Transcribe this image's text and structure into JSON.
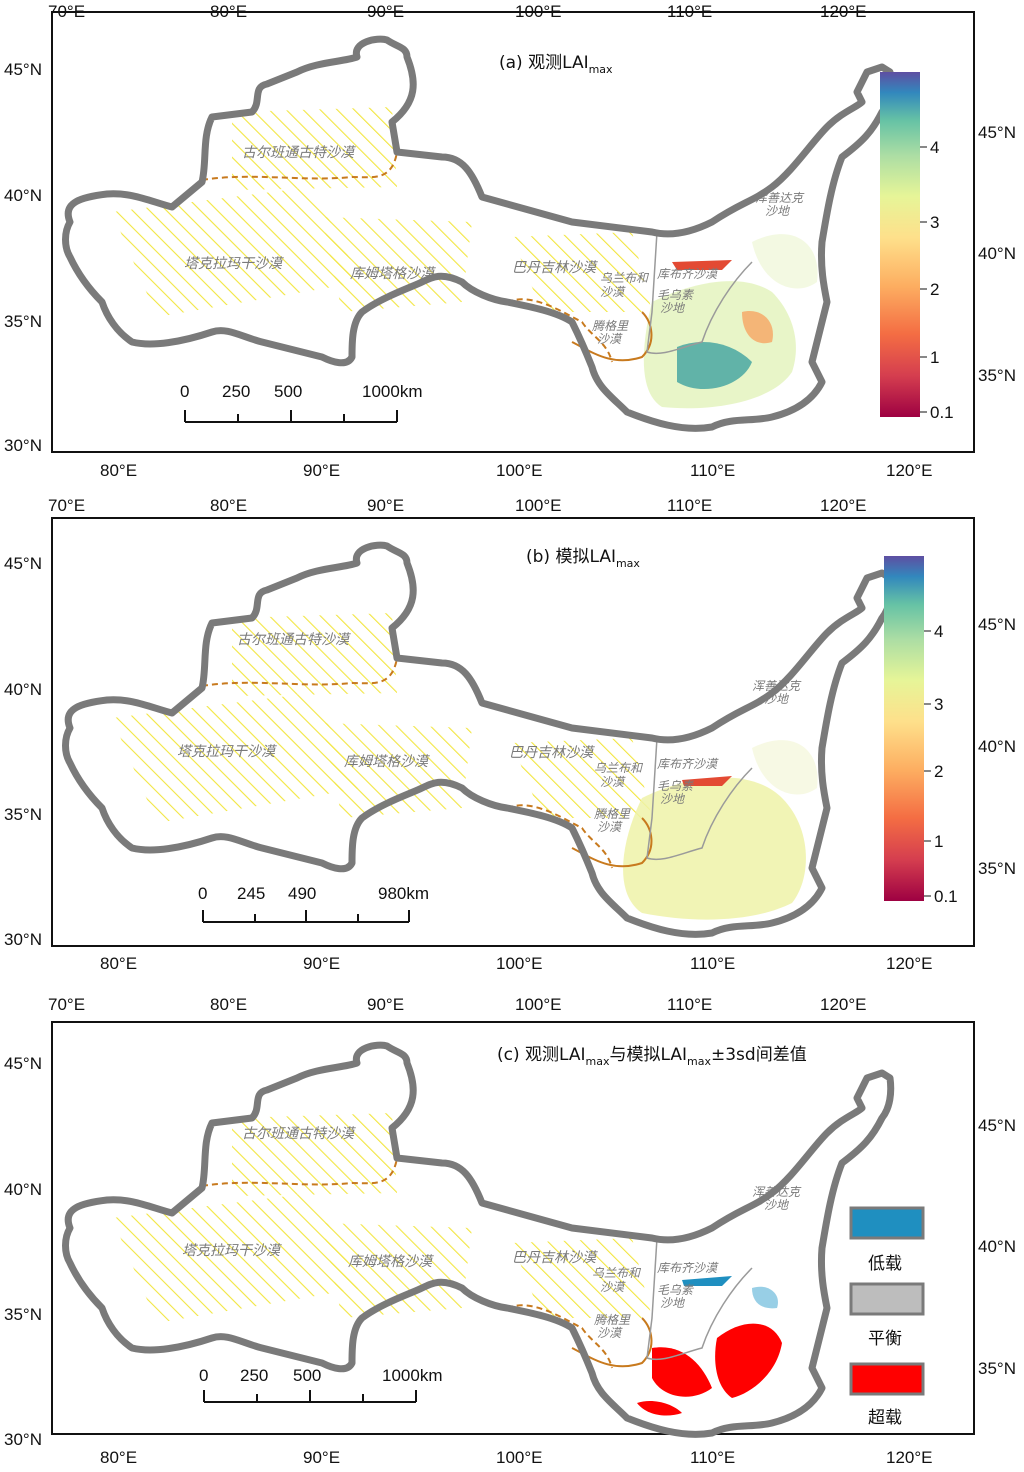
{
  "labels": {
    "lat_ticks": [
      "45°N",
      "40°N",
      "35°N",
      "30°N"
    ],
    "lon_top": [
      "70°E",
      "80°E",
      "90°E",
      "100°E",
      "110°E",
      "120°E"
    ],
    "lon_bottom": [
      "80°E",
      "90°E",
      "100°E",
      "110°E",
      "120°E"
    ],
    "lat_right": [
      "45°N",
      "40°N",
      "35°N"
    ]
  },
  "deserts": {
    "gurbantunggut": "古尔班通古特沙漠",
    "taklamakan": "塔克拉玛干沙漠",
    "kumtag": "库姆塔格沙漠",
    "badain_jaran": "巴丹吉林沙漠",
    "ulan_buh_1": "乌兰布和",
    "ulan_buh_2": "沙漠",
    "hobq": "库布齐沙漠",
    "mu_us_1": "毛乌素",
    "mu_us_2": "沙地",
    "tengger_1": "腾格里",
    "tengger_2": "沙漠",
    "hunshandake_1": "浑善达克",
    "hunshandake_2": "沙地"
  },
  "panels": [
    {
      "title_prefix": "(a) 观测LAI",
      "title_sub": "max",
      "title_suffix": "",
      "scale": [
        "0",
        "250",
        "500",
        "1000km"
      ],
      "colorbar_ticks": [
        "4",
        "3",
        "2",
        "1",
        "0.1"
      ]
    },
    {
      "title_prefix": "(b) 模拟LAI",
      "title_sub": "max",
      "title_suffix": "",
      "scale": [
        "0",
        "245",
        "490",
        "980km"
      ],
      "colorbar_ticks": [
        "4",
        "3",
        "2",
        "1",
        "0.1"
      ]
    },
    {
      "title_prefix": "(c) 观测LAI",
      "title_sub": "max",
      "title_mid": "与模拟LAI",
      "title_sub2": "max",
      "title_suffix": "±3sd间差值",
      "scale": [
        "0",
        "250",
        "500",
        "1000km"
      ],
      "legend": [
        "低载",
        "平衡",
        "超载"
      ]
    }
  ],
  "colors": {
    "boundary": "#7a7a7a",
    "desert_hatch": "#f2e640",
    "desert_dash": "#c87a1e",
    "understock": "#1f8fc0",
    "balance": "#bdbdbd",
    "overstock": "#ff0000",
    "colorbar_stops": [
      "#9e0142",
      "#f46d43",
      "#fdae61",
      "#fee08b",
      "#e6f598",
      "#66c2a5",
      "#3288bd",
      "#5e4fa2"
    ]
  }
}
